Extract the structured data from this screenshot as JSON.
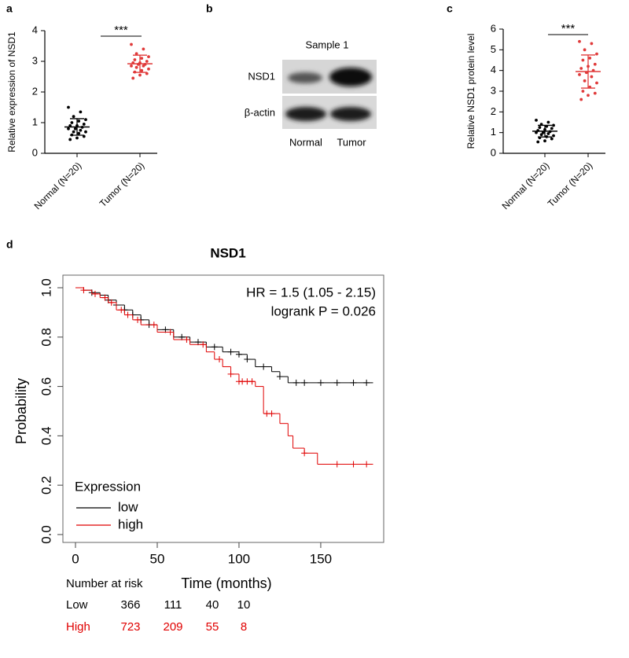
{
  "chart_data": [
    {
      "type": "dot",
      "panel_label": "a",
      "ylabel": "Relative expression of NSD1",
      "categories": [
        "Normal (N=20)",
        "Tumor (N=20)"
      ],
      "colors": [
        "#000000",
        "#e03a3a"
      ],
      "values": [
        [
          1.5,
          1.35,
          1.2,
          1.1,
          1.05,
          1.0,
          0.95,
          0.9,
          0.9,
          0.85,
          0.8,
          0.8,
          0.75,
          0.7,
          0.7,
          0.65,
          0.6,
          0.55,
          0.5,
          0.45
        ],
        [
          3.55,
          3.4,
          3.25,
          3.15,
          3.1,
          3.05,
          3.0,
          2.95,
          2.95,
          2.9,
          2.9,
          2.85,
          2.85,
          2.8,
          2.75,
          2.7,
          2.65,
          2.6,
          2.55,
          2.45
        ]
      ],
      "mean": [
        0.86,
        2.92
      ],
      "sd": [
        0.27,
        0.28
      ],
      "annotation": "***",
      "ylim": [
        0,
        4
      ],
      "yticks": [
        0,
        1,
        2,
        3,
        4
      ]
    },
    {
      "type": "dot",
      "panel_label": "c",
      "ylabel": "Relative NSD1 protein level",
      "categories": [
        "Normal (N=20)",
        "Tumor (N=20)"
      ],
      "colors": [
        "#000000",
        "#e03a3a"
      ],
      "values": [
        [
          1.6,
          1.5,
          1.4,
          1.35,
          1.3,
          1.25,
          1.2,
          1.15,
          1.1,
          1.05,
          1.0,
          1.0,
          0.95,
          0.9,
          0.85,
          0.8,
          0.75,
          0.7,
          0.6,
          0.55
        ],
        [
          5.4,
          5.3,
          5.0,
          4.8,
          4.6,
          4.5,
          4.3,
          4.2,
          4.1,
          4.0,
          3.9,
          3.8,
          3.7,
          3.5,
          3.4,
          3.2,
          3.0,
          2.9,
          2.8,
          2.6
        ]
      ],
      "mean": [
        1.07,
        3.95
      ],
      "sd": [
        0.28,
        0.8
      ],
      "annotation": "***",
      "ylim": [
        0,
        6
      ],
      "yticks": [
        0,
        1,
        2,
        3,
        4,
        5,
        6
      ]
    },
    {
      "type": "survival",
      "panel_label": "d",
      "title": "NSD1",
      "xlabel": "Time (months)",
      "ylabel": "Probability",
      "annotations": [
        "HR = 1.5 (1.05 - 2.15)",
        "logrank P = 0.026"
      ],
      "legend_title": "Expression",
      "xlim": [
        -7.7,
        188.5
      ],
      "xticks": [
        0,
        50,
        100,
        150
      ],
      "ylim": [
        -0.032,
        1.051
      ],
      "yticks": [
        {
          "value": 0,
          "label": "0.0"
        },
        0.2,
        0.4,
        0.6,
        0.8,
        {
          "value": 1,
          "label": "1.0"
        }
      ],
      "series": [
        {
          "name": "low",
          "color": "#000000",
          "x": [
            0,
            5,
            10,
            15,
            20,
            25,
            30,
            35,
            40,
            45,
            50,
            60,
            70,
            80,
            90,
            100,
            105,
            110,
            120,
            125,
            130,
            182
          ],
          "values": [
            1,
            0.99,
            0.98,
            0.97,
            0.95,
            0.93,
            0.91,
            0.89,
            0.87,
            0.85,
            0.83,
            0.8,
            0.78,
            0.76,
            0.74,
            0.73,
            0.71,
            0.68,
            0.66,
            0.64,
            0.615,
            0.615
          ],
          "censored": [
            10,
            20,
            25,
            30,
            35,
            40,
            45,
            55,
            65,
            75,
            85,
            95,
            100,
            105,
            115,
            125,
            135,
            140,
            150,
            160,
            170,
            178
          ]
        },
        {
          "name": "high",
          "color": "#e00000",
          "x": [
            0,
            5,
            10,
            15,
            20,
            25,
            30,
            35,
            40,
            50,
            60,
            70,
            80,
            85,
            90,
            95,
            100,
            110,
            115,
            120,
            125,
            130,
            133,
            140,
            148,
            182
          ],
          "values": [
            1,
            0.99,
            0.975,
            0.96,
            0.94,
            0.91,
            0.89,
            0.87,
            0.85,
            0.82,
            0.79,
            0.77,
            0.74,
            0.71,
            0.68,
            0.65,
            0.62,
            0.6,
            0.49,
            0.49,
            0.45,
            0.4,
            0.35,
            0.33,
            0.285,
            0.285
          ],
          "censored": [
            5,
            12,
            18,
            22,
            28,
            32,
            38,
            48,
            58,
            68,
            78,
            88,
            95,
            100,
            102,
            105,
            108,
            117,
            120,
            140,
            160,
            170,
            178
          ]
        }
      ],
      "risk_table": {
        "title": "Number at risk",
        "rows": [
          {
            "name": "Low",
            "color": "#000000",
            "values": [
              366,
              111,
              40,
              10
            ]
          },
          {
            "name": "High",
            "color": "#e00000",
            "values": [
              723,
              209,
              55,
              8
            ]
          }
        ]
      }
    }
  ],
  "blot": {
    "panel_label": "b",
    "title": "Sample 1",
    "rows": [
      "NSD1",
      "β-actin"
    ],
    "columns": [
      "Normal",
      "Tumor"
    ]
  }
}
